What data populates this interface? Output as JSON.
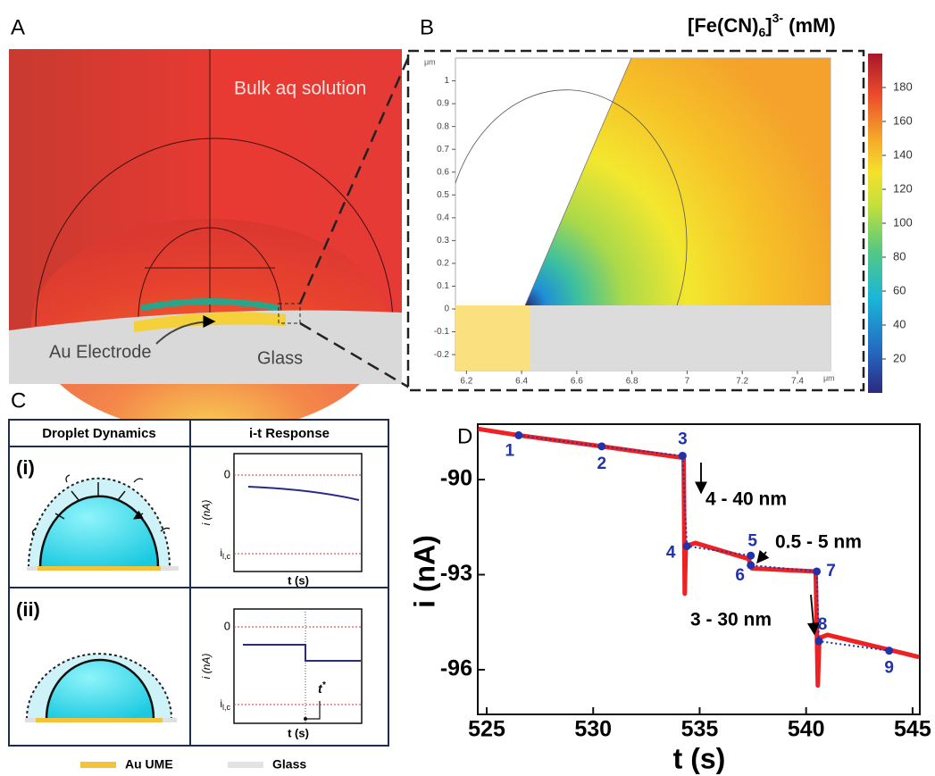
{
  "panel_a": {
    "label": "A",
    "bulk": "Bulk aq solution",
    "electrode": "Au Electrode",
    "glass": "Glass"
  },
  "panel_b": {
    "label": "B",
    "x_unit": "μm",
    "y_unit": "μm",
    "xlim": [
      6.16,
      7.52
    ],
    "ylim": [
      -0.27,
      1.1
    ],
    "xticks": [
      6.2,
      6.4,
      6.6,
      6.8,
      7,
      7.2,
      7.4
    ],
    "yticks": [
      -0.2,
      -0.1,
      0,
      0.1,
      0.2,
      0.3,
      0.4,
      0.5,
      0.6,
      0.7,
      0.8,
      0.9,
      1
    ],
    "colorbar_title": [
      "[Fe(CN)",
      "6",
      "]",
      "3-",
      " (mM)"
    ],
    "colorbar_lim": [
      0,
      200
    ],
    "colorbar_ticks": [
      20,
      40,
      60,
      80,
      100,
      120,
      140,
      160,
      180
    ]
  },
  "panel_c": {
    "label": "C",
    "headers": [
      "Droplet Dynamics",
      "i-t Response"
    ],
    "rows": [
      "(i)",
      "(ii)"
    ],
    "y_label": "i (nA)",
    "zero": "0",
    "limit": [
      "i",
      "l,c"
    ],
    "x_label": "t (s)",
    "t_star": [
      "t",
      "*"
    ],
    "legend": [
      "Au UME",
      "Glass"
    ]
  },
  "chart_data": {
    "type": "line",
    "label": "D",
    "x_label": "t (s)",
    "y_label": "i (nA)",
    "xlim": [
      524.58,
      545.34
    ],
    "ylim": [
      -97.41,
      -88.25
    ],
    "xticks": [
      525,
      530,
      535,
      540,
      545
    ],
    "yticks": [
      -90,
      -93,
      -96
    ],
    "series": [
      {
        "color": "#ee2222",
        "x": [
          524.6,
          526.5,
          530.4,
          534.1,
          534.25,
          534.3,
          534.35,
          534.8,
          537.3,
          537.45,
          540.45,
          540.55,
          540.62,
          541.0,
          545.3
        ],
        "values": [
          -88.4,
          -88.6,
          -88.95,
          -89.3,
          -89.3,
          -93.6,
          -92.1,
          -92.0,
          -92.5,
          -92.8,
          -92.9,
          -96.5,
          -95.0,
          -94.9,
          -95.6
        ]
      },
      {
        "color": "#2233aa",
        "x": [
          526.5,
          530.4,
          534.2,
          534.4,
          537.4,
          537.4,
          540.5,
          540.6,
          543.9
        ],
        "values": [
          -88.6,
          -88.95,
          -89.25,
          -92.1,
          -92.4,
          -92.7,
          -92.9,
          -95.1,
          -95.4
        ],
        "point_labels": [
          "1",
          "2",
          "3",
          "4",
          "5",
          "6",
          "7",
          "8",
          "9"
        ]
      }
    ],
    "annotations": [
      "4 - 40 nm",
      "0.5 - 5 nm",
      "3 - 30 nm"
    ]
  }
}
